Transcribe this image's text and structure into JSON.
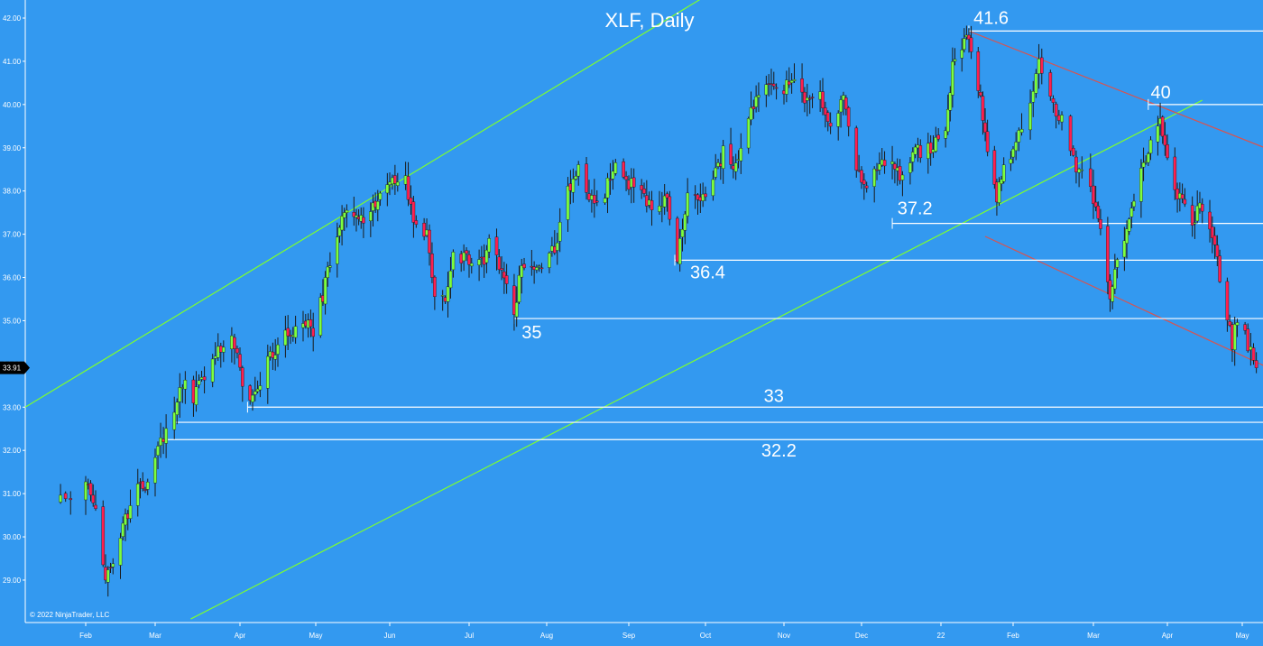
{
  "chart_data": {
    "type": "candlestick",
    "title": "XLF, Daily",
    "watermark": "© 2022 NinjaTrader, LLC",
    "ylim": [
      28.1,
      42.4
    ],
    "y_ticks": [
      "42.00",
      "41.00",
      "40.00",
      "39.00",
      "38.00",
      "37.00",
      "36.00",
      "35.00",
      "34.00",
      "33.00",
      "32.00",
      "31.00",
      "30.00",
      "29.00"
    ],
    "x_tick_labels": [
      "Feb",
      "Mar",
      "Apr",
      "May",
      "Jun",
      "Jul",
      "Aug",
      "Sep",
      "Oct",
      "Nov",
      "Dec",
      "22",
      "Feb",
      "Mar",
      "Apr",
      "May"
    ],
    "current_price": "33.91",
    "horizontal_levels": [
      {
        "label": "41.6",
        "value": 41.7
      },
      {
        "label": "40",
        "value": 40.0
      },
      {
        "label": "37.2",
        "value": 37.25
      },
      {
        "label": "36.4",
        "value": 36.4
      },
      {
        "label": "35",
        "value": 35.05
      },
      {
        "label": "33",
        "value": 33.0
      },
      {
        "label": "",
        "value": 32.65
      },
      {
        "label": "32.2",
        "value": 32.25
      }
    ],
    "price_path": [
      [
        "2021-01-27",
        30.8
      ],
      [
        "2021-02-01",
        31.2
      ],
      [
        "2021-02-05",
        30.6
      ],
      [
        "2021-02-09",
        29.0
      ],
      [
        "2021-02-12",
        29.4
      ],
      [
        "2021-02-17",
        30.4
      ],
      [
        "2021-02-22",
        31.3
      ],
      [
        "2021-02-26",
        31.2
      ],
      [
        "2021-03-03",
        32.2
      ],
      [
        "2021-03-08",
        32.9
      ],
      [
        "2021-03-11",
        33.6
      ],
      [
        "2021-03-15",
        33.2
      ],
      [
        "2021-03-19",
        33.7
      ],
      [
        "2021-03-24",
        34.3
      ],
      [
        "2021-03-29",
        34.6
      ],
      [
        "2021-04-02",
        33.6
      ],
      [
        "2021-04-06",
        33.2
      ],
      [
        "2021-04-12",
        34.0
      ],
      [
        "2021-04-16",
        34.5
      ],
      [
        "2021-04-21",
        34.8
      ],
      [
        "2021-04-27",
        35.0
      ],
      [
        "2021-04-30",
        34.7
      ],
      [
        "2021-05-04",
        35.6
      ],
      [
        "2021-05-07",
        36.4
      ],
      [
        "2021-05-11",
        37.2
      ],
      [
        "2021-05-14",
        37.6
      ],
      [
        "2021-05-19",
        37.3
      ],
      [
        "2021-05-24",
        37.6
      ],
      [
        "2021-05-28",
        37.9
      ],
      [
        "2021-06-02",
        38.3
      ],
      [
        "2021-06-07",
        38.2
      ],
      [
        "2021-06-10",
        37.4
      ],
      [
        "2021-06-15",
        37.0
      ],
      [
        "2021-06-18",
        35.5
      ],
      [
        "2021-06-22",
        35.6
      ],
      [
        "2021-06-25",
        36.6
      ],
      [
        "2021-06-30",
        36.4
      ],
      [
        "2021-07-06",
        36.3
      ],
      [
        "2021-07-09",
        36.8
      ],
      [
        "2021-07-14",
        36.2
      ],
      [
        "2021-07-19",
        35.2
      ],
      [
        "2021-07-22",
        36.3
      ],
      [
        "2021-07-27",
        36.1
      ],
      [
        "2021-07-30",
        36.3
      ],
      [
        "2021-08-04",
        36.7
      ],
      [
        "2021-08-09",
        38.0
      ],
      [
        "2021-08-13",
        38.6
      ],
      [
        "2021-08-18",
        37.8
      ],
      [
        "2021-08-23",
        38.0
      ],
      [
        "2021-08-27",
        38.6
      ],
      [
        "2021-09-01",
        38.2
      ],
      [
        "2021-09-07",
        37.9
      ],
      [
        "2021-09-10",
        37.6
      ],
      [
        "2021-09-16",
        37.8
      ],
      [
        "2021-09-20",
        36.4
      ],
      [
        "2021-09-24",
        37.8
      ],
      [
        "2021-09-29",
        37.9
      ],
      [
        "2021-10-04",
        38.2
      ],
      [
        "2021-10-08",
        38.9
      ],
      [
        "2021-10-13",
        38.6
      ],
      [
        "2021-10-18",
        39.6
      ],
      [
        "2021-10-22",
        40.3
      ],
      [
        "2021-10-27",
        40.6
      ],
      [
        "2021-11-01",
        40.4
      ],
      [
        "2021-11-05",
        40.6
      ],
      [
        "2021-11-10",
        40.1
      ],
      [
        "2021-11-15",
        40.2
      ],
      [
        "2021-11-19",
        39.6
      ],
      [
        "2021-11-24",
        40.2
      ],
      [
        "2021-11-29",
        38.6
      ],
      [
        "2021-12-03",
        38.0
      ],
      [
        "2021-12-08",
        38.6
      ],
      [
        "2021-12-13",
        38.8
      ],
      [
        "2021-12-17",
        38.2
      ],
      [
        "2021-12-22",
        38.9
      ],
      [
        "2021-12-28",
        39.0
      ],
      [
        "2022-01-03",
        39.5
      ],
      [
        "2022-01-06",
        40.9
      ],
      [
        "2022-01-10",
        41.4
      ],
      [
        "2022-01-13",
        41.6
      ],
      [
        "2022-01-18",
        40.2
      ],
      [
        "2022-01-21",
        38.9
      ],
      [
        "2022-01-25",
        37.8
      ],
      [
        "2022-01-28",
        38.6
      ],
      [
        "2022-02-02",
        39.1
      ],
      [
        "2022-02-07",
        40.0
      ],
      [
        "2022-02-10",
        40.9
      ],
      [
        "2022-02-14",
        40.2
      ],
      [
        "2022-02-18",
        39.6
      ],
      [
        "2022-02-23",
        38.5
      ],
      [
        "2022-02-28",
        38.1
      ],
      [
        "2022-03-04",
        37.2
      ],
      [
        "2022-03-08",
        35.6
      ],
      [
        "2022-03-11",
        36.5
      ],
      [
        "2022-03-16",
        37.2
      ],
      [
        "2022-03-21",
        38.5
      ],
      [
        "2022-03-24",
        39.0
      ],
      [
        "2022-03-29",
        39.6
      ],
      [
        "2022-04-01",
        38.7
      ],
      [
        "2022-04-06",
        37.8
      ],
      [
        "2022-04-11",
        37.3
      ],
      [
        "2022-04-14",
        37.6
      ],
      [
        "2022-04-19",
        37.0
      ],
      [
        "2022-04-22",
        36.0
      ],
      [
        "2022-04-27",
        34.5
      ],
      [
        "2022-04-29",
        35.1
      ],
      [
        "2022-05-04",
        34.3
      ],
      [
        "2022-05-06",
        33.91
      ]
    ]
  }
}
